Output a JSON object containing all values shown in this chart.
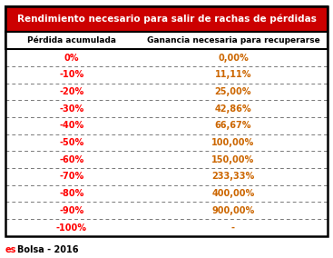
{
  "title": "Rendimiento necesario para salir de rachas de pérdidas",
  "title_bg": "#cc0000",
  "title_color": "#ffffff",
  "header1": "Pérdida acumulada",
  "header2": "Ganancia necesaria para recuperarse",
  "header_bg": "#ffffff",
  "header_color": "#000000",
  "col1_values": [
    "0%",
    "-10%",
    "-20%",
    "-30%",
    "-40%",
    "-50%",
    "-60%",
    "-70%",
    "-80%",
    "-90%",
    "-100%"
  ],
  "col2_values": [
    "0,00%",
    "11,11%",
    "25,00%",
    "42,86%",
    "66,67%",
    "100,00%",
    "150,00%",
    "233,33%",
    "400,00%",
    "900,00%",
    "-"
  ],
  "col1_color": "#ff0000",
  "col2_color": "#cc6600",
  "border_color": "#000000",
  "outer_bg": "#ffffff",
  "footer_es_color": "#ff0000",
  "footer_bolsa_color": "#000000",
  "footer_rest": "Bolsa - 2016",
  "footer_es": "es",
  "figsize": [
    3.67,
    2.84
  ],
  "dpi": 100,
  "col_split": 0.415
}
